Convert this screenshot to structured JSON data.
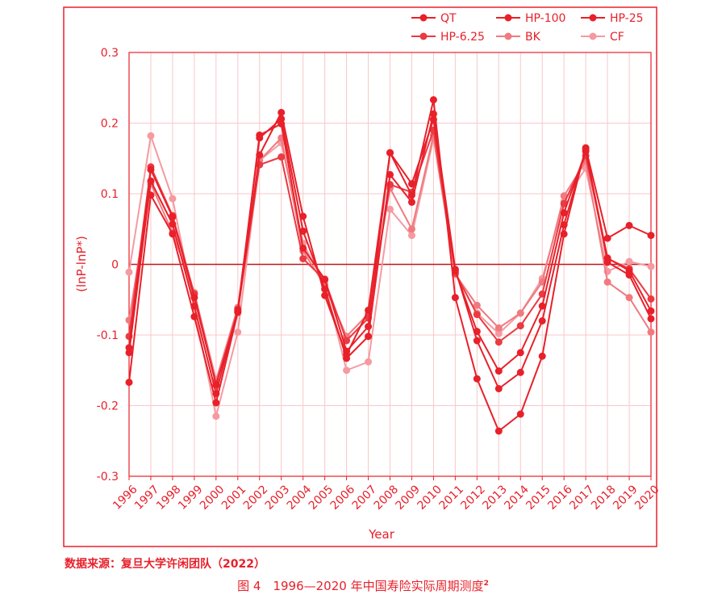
{
  "chart_data": {
    "type": "line",
    "xlabel": "Year",
    "ylabel": "(lnP-lnP*)",
    "ylim": [
      -0.3,
      0.3
    ],
    "yticks": [
      "0.3",
      "0.2",
      "0.1",
      "0",
      "-0.1",
      "-0.2",
      "-0.3"
    ],
    "x": [
      "1996",
      "1997",
      "1998",
      "1999",
      "2000",
      "2001",
      "2002",
      "2003",
      "2004",
      "2005",
      "2006",
      "2007",
      "2008",
      "2009",
      "2010",
      "2011",
      "2012",
      "2013",
      "2014",
      "2015",
      "2016",
      "2017",
      "2018",
      "2019",
      "2020"
    ],
    "grid": true,
    "legend_position": "top-right",
    "series": [
      {
        "name": "QT",
        "color": "#e8202a",
        "values": [
          -0.167,
          0.098,
          0.043,
          -0.074,
          -0.196,
          -0.068,
          0.155,
          0.215,
          0.068,
          -0.044,
          -0.128,
          -0.065,
          0.158,
          0.098,
          0.233,
          -0.047,
          -0.162,
          -0.236,
          -0.212,
          -0.13,
          0.043,
          0.165,
          0.037,
          0.055,
          0.041
        ]
      },
      {
        "name": "HP-100",
        "color": "#e8202a",
        "values": [
          -0.125,
          0.118,
          0.057,
          -0.059,
          -0.183,
          -0.064,
          0.179,
          0.206,
          0.047,
          -0.035,
          -0.133,
          -0.102,
          0.127,
          0.088,
          0.213,
          -0.007,
          -0.108,
          -0.176,
          -0.153,
          -0.08,
          0.056,
          0.163,
          0.003,
          -0.015,
          -0.077
        ]
      },
      {
        "name": "HP-25",
        "color": "#e8202a",
        "values": [
          -0.118,
          0.134,
          0.067,
          -0.047,
          -0.17,
          -0.067,
          0.183,
          0.199,
          0.023,
          -0.021,
          -0.123,
          -0.088,
          0.158,
          0.114,
          0.205,
          -0.009,
          -0.095,
          -0.151,
          -0.125,
          -0.059,
          0.073,
          0.16,
          0.009,
          -0.009,
          -0.066
        ]
      },
      {
        "name": "HP-6.25",
        "color": "#ea3a42",
        "values": [
          -0.102,
          0.138,
          0.069,
          -0.042,
          -0.171,
          -0.066,
          0.141,
          0.152,
          0.008,
          -0.022,
          -0.108,
          -0.076,
          0.113,
          0.102,
          0.19,
          -0.012,
          -0.071,
          -0.11,
          -0.087,
          -0.042,
          0.086,
          0.154,
          0.008,
          -0.006,
          -0.049
        ]
      },
      {
        "name": "BK",
        "color": "#f07a80",
        "values": [
          -0.079,
          0.114,
          0.045,
          -0.04,
          -0.164,
          -0.061,
          0.147,
          0.179,
          0.019,
          -0.03,
          -0.102,
          -0.07,
          0.108,
          0.05,
          0.183,
          -0.014,
          -0.058,
          -0.09,
          -0.069,
          -0.025,
          0.097,
          0.146,
          -0.025,
          -0.047,
          -0.096
        ]
      },
      {
        "name": "CF",
        "color": "#f59aa0",
        "values": [
          -0.011,
          0.182,
          0.093,
          -0.061,
          -0.215,
          -0.096,
          0.147,
          0.172,
          0.03,
          -0.028,
          -0.15,
          -0.138,
          0.078,
          0.041,
          0.178,
          -0.014,
          -0.069,
          -0.098,
          -0.069,
          -0.02,
          0.089,
          0.136,
          -0.01,
          0.004,
          -0.003
        ]
      }
    ]
  },
  "footer": {
    "source": "数据来源：复旦大学许闲团队（2022）",
    "caption": "图 4　1996—2020 年中国寿险实际周期测度",
    "caption_sup": "2"
  }
}
